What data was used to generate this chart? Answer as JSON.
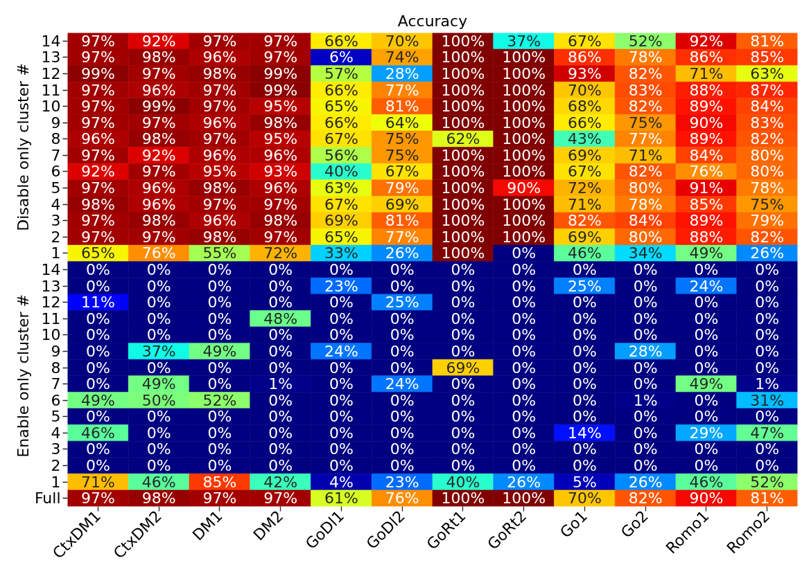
{
  "chart_data": {
    "type": "heatmap",
    "title": "Accuracy",
    "categories": [
      "CtxDM1",
      "CtxDM2",
      "DM1",
      "DM2",
      "GoDl1",
      "GoDl2",
      "GoRt1",
      "GoRt2",
      "Go1",
      "Go2",
      "Romo1",
      "Romo2"
    ],
    "y_categories": [
      "14",
      "13",
      "12",
      "11",
      "10",
      "9",
      "8",
      "7",
      "6",
      "5",
      "4",
      "3",
      "2",
      "1",
      "14",
      "13",
      "12",
      "11",
      "10",
      "9",
      "8",
      "7",
      "6",
      "5",
      "4",
      "3",
      "2",
      "1",
      "Full"
    ],
    "cells": [
      [
        97,
        92,
        97,
        97,
        66,
        70,
        100,
        37,
        67,
        52,
        92,
        81
      ],
      [
        97,
        98,
        96,
        97,
        6,
        74,
        100,
        100,
        86,
        78,
        86,
        85
      ],
      [
        99,
        97,
        98,
        99,
        57,
        28,
        100,
        100,
        93,
        82,
        71,
        63
      ],
      [
        97,
        96,
        97,
        99,
        66,
        77,
        100,
        100,
        70,
        83,
        88,
        87
      ],
      [
        97,
        99,
        97,
        95,
        65,
        81,
        100,
        100,
        68,
        82,
        89,
        84
      ],
      [
        97,
        97,
        96,
        98,
        66,
        64,
        100,
        100,
        66,
        75,
        90,
        83
      ],
      [
        96,
        98,
        97,
        95,
        67,
        75,
        62,
        100,
        43,
        77,
        89,
        82
      ],
      [
        97,
        92,
        96,
        96,
        56,
        75,
        100,
        100,
        69,
        71,
        84,
        80
      ],
      [
        92,
        97,
        95,
        93,
        40,
        67,
        100,
        100,
        67,
        82,
        76,
        80
      ],
      [
        97,
        96,
        98,
        96,
        63,
        79,
        100,
        90,
        72,
        80,
        91,
        78
      ],
      [
        98,
        96,
        97,
        97,
        67,
        69,
        100,
        100,
        71,
        78,
        85,
        75
      ],
      [
        97,
        98,
        96,
        98,
        69,
        81,
        100,
        100,
        82,
        84,
        89,
        79
      ],
      [
        97,
        97,
        98,
        97,
        65,
        77,
        100,
        100,
        69,
        80,
        88,
        82
      ],
      [
        65,
        76,
        55,
        72,
        33,
        26,
        100,
        0,
        46,
        34,
        49,
        26
      ],
      [
        0,
        0,
        0,
        0,
        0,
        0,
        0,
        0,
        0,
        0,
        0,
        0
      ],
      [
        0,
        0,
        0,
        0,
        23,
        0,
        0,
        0,
        25,
        0,
        24,
        0
      ],
      [
        11,
        0,
        0,
        0,
        0,
        25,
        0,
        0,
        0,
        0,
        0,
        0
      ],
      [
        0,
        0,
        0,
        48,
        0,
        0,
        0,
        0,
        0,
        0,
        0,
        0
      ],
      [
        0,
        0,
        0,
        0,
        0,
        0,
        0,
        0,
        0,
        0,
        0,
        0
      ],
      [
        0,
        37,
        49,
        0,
        24,
        0,
        0,
        0,
        0,
        28,
        0,
        0
      ],
      [
        0,
        0,
        0,
        0,
        0,
        0,
        69,
        0,
        0,
        0,
        0,
        0
      ],
      [
        0,
        49,
        0,
        1,
        0,
        24,
        0,
        0,
        0,
        0,
        49,
        1
      ],
      [
        49,
        50,
        52,
        0,
        0,
        0,
        0,
        0,
        0,
        1,
        0,
        31
      ],
      [
        0,
        0,
        0,
        0,
        0,
        0,
        0,
        0,
        0,
        0,
        0,
        0
      ],
      [
        46,
        0,
        0,
        0,
        0,
        0,
        0,
        0,
        14,
        0,
        29,
        47
      ],
      [
        0,
        0,
        0,
        0,
        0,
        0,
        0,
        0,
        0,
        0,
        0,
        0
      ],
      [
        0,
        0,
        0,
        0,
        0,
        0,
        0,
        0,
        0,
        0,
        0,
        0
      ],
      [
        71,
        46,
        85,
        42,
        4,
        23,
        40,
        26,
        5,
        26,
        46,
        52
      ],
      [
        97,
        98,
        97,
        97,
        61,
        76,
        100,
        100,
        70,
        82,
        90,
        81
      ]
    ],
    "cell_labels": [
      [
        "97%",
        "92%",
        "97%",
        "97%",
        "66%",
        "70%",
        "100%",
        "37%",
        "67%",
        "52%",
        "92%",
        "81%"
      ],
      [
        "97%",
        "98%",
        "96%",
        "97%",
        "6%",
        "74%",
        "100%",
        "100%",
        "86%",
        "78%",
        "86%",
        "85%"
      ],
      [
        "99%",
        "97%",
        "98%",
        "99%",
        "57%",
        "28%",
        "100%",
        "100%",
        "93%",
        "82%",
        "71%",
        "63%"
      ],
      [
        "97%",
        "96%",
        "97%",
        "99%",
        "66%",
        "77%",
        "100%",
        "100%",
        "70%",
        "83%",
        "88%",
        "87%"
      ],
      [
        "97%",
        "99%",
        "97%",
        "95%",
        "65%",
        "81%",
        "100%",
        "100%",
        "68%",
        "82%",
        "89%",
        "84%"
      ],
      [
        "97%",
        "97%",
        "96%",
        "98%",
        "66%",
        "64%",
        "100%",
        "100%",
        "66%",
        "75%",
        "90%",
        "83%"
      ],
      [
        "96%",
        "98%",
        "97%",
        "95%",
        "67%",
        "75%",
        "62%",
        "100%",
        "43%",
        "77%",
        "89%",
        "82%"
      ],
      [
        "97%",
        "92%",
        "96%",
        "96%",
        "56%",
        "75%",
        "100%",
        "100%",
        "69%",
        "71%",
        "84%",
        "80%"
      ],
      [
        "92%",
        "97%",
        "95%",
        "93%",
        "40%",
        "67%",
        "100%",
        "100%",
        "67%",
        "82%",
        "76%",
        "80%"
      ],
      [
        "97%",
        "96%",
        "98%",
        "96%",
        "63%",
        "79%",
        "100%",
        "90%",
        "72%",
        "80%",
        "91%",
        "78%"
      ],
      [
        "98%",
        "96%",
        "97%",
        "97%",
        "67%",
        "69%",
        "100%",
        "100%",
        "71%",
        "78%",
        "85%",
        "75%"
      ],
      [
        "97%",
        "98%",
        "96%",
        "98%",
        "69%",
        "81%",
        "100%",
        "100%",
        "82%",
        "84%",
        "89%",
        "79%"
      ],
      [
        "97%",
        "97%",
        "98%",
        "97%",
        "65%",
        "77%",
        "100%",
        "100%",
        "69%",
        "80%",
        "88%",
        "82%"
      ],
      [
        "65%",
        "76%",
        "55%",
        "72%",
        "33%",
        "26%",
        "100%",
        "0%",
        "46%",
        "34%",
        "49%",
        "26%"
      ],
      [
        "0%",
        "0%",
        "0%",
        "0%",
        "0%",
        "0%",
        "0%",
        "0%",
        "0%",
        "0%",
        "0%",
        "0%"
      ],
      [
        "0%",
        "0%",
        "0%",
        "0%",
        "23%",
        "0%",
        "0%",
        "0%",
        "25%",
        "0%",
        "24%",
        "0%"
      ],
      [
        "11%",
        "0%",
        "0%",
        "0%",
        "0%",
        "25%",
        "0%",
        "0%",
        "0%",
        "0%",
        "0%",
        "0%"
      ],
      [
        "0%",
        "0%",
        "0%",
        "48%",
        "0%",
        "0%",
        "0%",
        "0%",
        "0%",
        "0%",
        "0%",
        "0%"
      ],
      [
        "0%",
        "0%",
        "0%",
        "0%",
        "0%",
        "0%",
        "0%",
        "0%",
        "0%",
        "0%",
        "0%",
        "0%"
      ],
      [
        "0%",
        "37%",
        "49%",
        "0%",
        "24%",
        "0%",
        "0%",
        "0%",
        "0%",
        "28%",
        "0%",
        "0%"
      ],
      [
        "0%",
        "0%",
        "0%",
        "0%",
        "0%",
        "0%",
        "69%",
        "0%",
        "0%",
        "0%",
        "0%",
        "0%"
      ],
      [
        "0%",
        "49%",
        "0%",
        "1%",
        "0%",
        "24%",
        "0%",
        "0%",
        "0%",
        "0%",
        "49%",
        "1%"
      ],
      [
        "49%",
        "50%",
        "52%",
        "0%",
        "0%",
        "0%",
        "0%",
        "0%",
        "0%",
        "1%",
        "0%",
        "31%"
      ],
      [
        "0%",
        "0%",
        "0%",
        "0%",
        "0%",
        "0%",
        "0%",
        "0%",
        "0%",
        "0%",
        "0%",
        "0%"
      ],
      [
        "46%",
        "0%",
        "0%",
        "0%",
        "0%",
        "0%",
        "0%",
        "0%",
        "14%",
        "0%",
        "29%",
        "47%"
      ],
      [
        "0%",
        "0%",
        "0%",
        "0%",
        "0%",
        "0%",
        "0%",
        "0%",
        "0%",
        "0%",
        "0%",
        "0%"
      ],
      [
        "0%",
        "0%",
        "0%",
        "0%",
        "0%",
        "0%",
        "0%",
        "0%",
        "0%",
        "0%",
        "0%",
        "0%"
      ],
      [
        "71%",
        "46%",
        "85%",
        "42%",
        "4%",
        "23%",
        "40%",
        "26%",
        "5%",
        "26%",
        "46%",
        "52%"
      ],
      [
        "97%",
        "98%",
        "97%",
        "97%",
        "61%",
        "76%",
        "100%",
        "100%",
        "70%",
        "82%",
        "90%",
        "81%"
      ]
    ],
    "annotations": [
      "Disable only cluster #",
      "Enable only cluster #"
    ]
  }
}
